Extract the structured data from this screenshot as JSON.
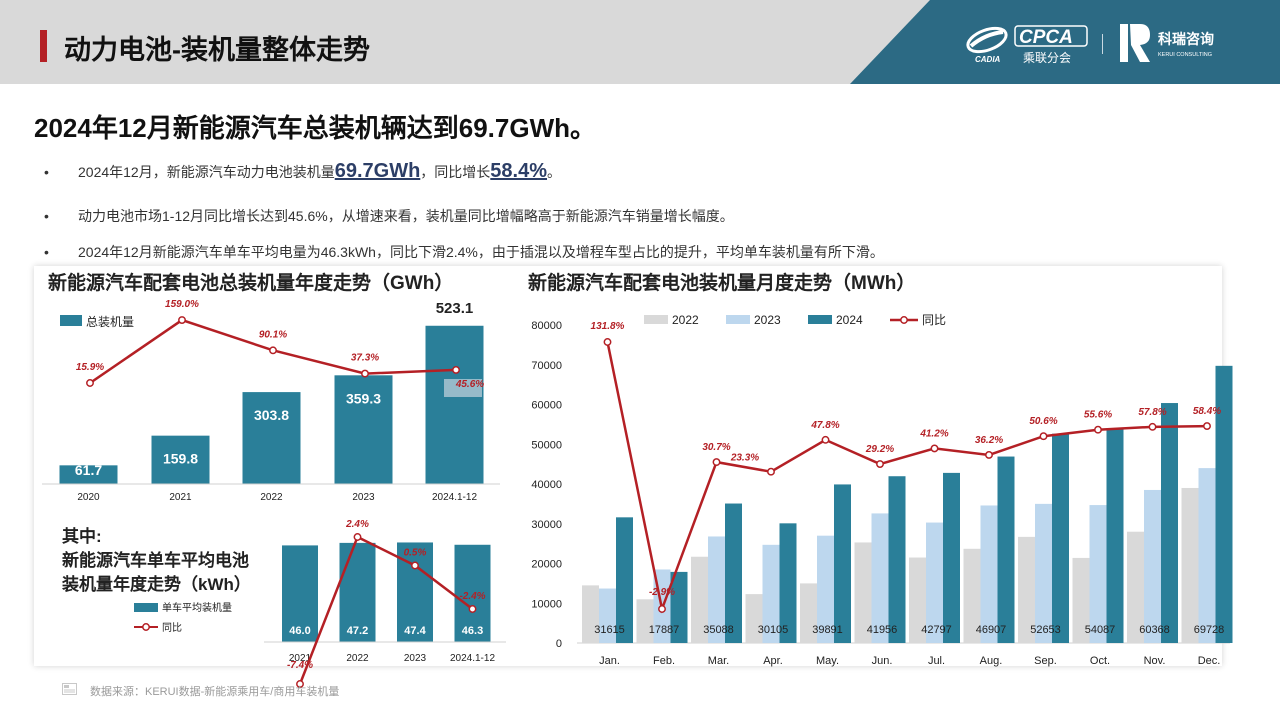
{
  "header": {
    "title": "动力电池-装机量整体走势"
  },
  "logos": {
    "cpca_text": "CPCA",
    "cpca_cn": "乘联分会",
    "cpca_sub": "CADIA",
    "kerui_cn": "科瑞咨询",
    "kerui_en": "KERUI CONSULTING"
  },
  "headline": "2024年12月新能源汽车总装机辆达到69.7GWh。",
  "bullets": {
    "b1": {
      "dot": "•",
      "pre": "2024年12月，新能源汽车动力电池装机量",
      "v1": "69.7GWh",
      "mid": "，同比增长",
      "v2": "58.4%",
      "post": "。"
    },
    "b2": {
      "dot": "•",
      "text": "动力电池市场1-12月同比增长达到45.6%，从增速来看，装机量同比增幅略高于新能源汽车销量增长幅度。"
    },
    "b3": {
      "dot": "•",
      "text": "2024年12月新能源汽车单车平均电量为46.3kWh，同比下滑2.4%，由于插混以及增程车型占比的提升，平均单车装机量有所下滑。"
    }
  },
  "colors": {
    "bar": "#2a7f99",
    "line": "#b42025",
    "grey": "#d9d9d9",
    "lightblue": "#bdd7ee",
    "accent_bg": "#2c6a84"
  },
  "chart_data": [
    {
      "type": "bar",
      "title": "新能源汽车配套电池总装机量年度走势（GWh）",
      "categories": [
        "2020",
        "2021",
        "2022",
        "2023",
        "2024.1-12"
      ],
      "series": [
        {
          "name": "总装机量",
          "values": [
            61.7,
            159.8,
            303.8,
            359.3,
            523.1
          ]
        }
      ],
      "line_series": {
        "values": [
          15.9,
          159.0,
          90.1,
          37.3,
          45.6
        ],
        "labels": [
          "15.9%",
          "159.0%",
          "90.1%",
          "37.3%",
          "45.6%"
        ]
      },
      "value_labels": [
        "61.7",
        "159.8",
        "303.8",
        "359.3",
        "523.1"
      ],
      "legend": "top-left"
    },
    {
      "type": "bar",
      "title": "其中:新能源汽车单车平均电池装机量年度走势（kWh）",
      "title_lines": [
        "其中:",
        "新能源汽车单车平均电池",
        "装机量年度走势（kWh）"
      ],
      "categories": [
        "2021",
        "2022",
        "2023",
        "2024.1-12"
      ],
      "series": [
        {
          "name": "单车平均装机量",
          "values": [
            46.0,
            47.2,
            47.4,
            46.3
          ]
        }
      ],
      "line_series": {
        "name": "同比",
        "values": [
          -7.4,
          2.4,
          0.5,
          -2.4
        ],
        "labels": [
          "-7.4%",
          "2.4%",
          "0.5%",
          "-2.4%"
        ]
      },
      "value_labels": [
        "46.0",
        "47.2",
        "47.4",
        "46.3"
      ],
      "legend": "bottom-left"
    },
    {
      "type": "bar",
      "title": "新能源汽车配套电池装机量月度走势（MWh）",
      "categories": [
        "Jan.",
        "Feb.",
        "Mar.",
        "Apr.",
        "May.",
        "Jun.",
        "Jul.",
        "Aug.",
        "Sep.",
        "Oct.",
        "Nov.",
        "Dec."
      ],
      "series": [
        {
          "name": "2022",
          "values": [
            14500,
            11000,
            21700,
            12300,
            15000,
            25300,
            21500,
            23700,
            26700,
            21400,
            28000,
            39000
          ]
        },
        {
          "name": "2023",
          "values": [
            13700,
            18500,
            26800,
            24700,
            27000,
            32600,
            30300,
            34600,
            35000,
            34700,
            38500,
            44000
          ]
        },
        {
          "name": "2024",
          "values": [
            31615,
            17887,
            35088,
            30105,
            39891,
            41956,
            42797,
            46907,
            52653,
            54087,
            60368,
            69728
          ]
        }
      ],
      "line_series": {
        "name": "同比",
        "values": [
          131.8,
          -2.9,
          30.7,
          23.3,
          47.8,
          29.2,
          41.2,
          36.2,
          50.6,
          55.6,
          57.8,
          58.4
        ],
        "labels": [
          "131.8%",
          "-2.9%",
          "30.7%",
          "23.3%",
          "47.8%",
          "29.2%",
          "41.2%",
          "36.2%",
          "50.6%",
          "55.6%",
          "57.8%",
          "58.4%"
        ]
      },
      "value_labels": [
        "31615",
        "17887",
        "35088",
        "30105",
        "39891",
        "41956",
        "42797",
        "46907",
        "52653",
        "54087",
        "60368",
        "69728"
      ],
      "ylim": [
        0,
        80000
      ],
      "yticks": [
        "80000",
        "70000",
        "60000",
        "50000",
        "40000",
        "30000",
        "20000",
        "10000",
        "0"
      ],
      "legend": "top"
    }
  ],
  "source": "数据来源：KERUI数据-新能源乘用车/商用车装机量"
}
